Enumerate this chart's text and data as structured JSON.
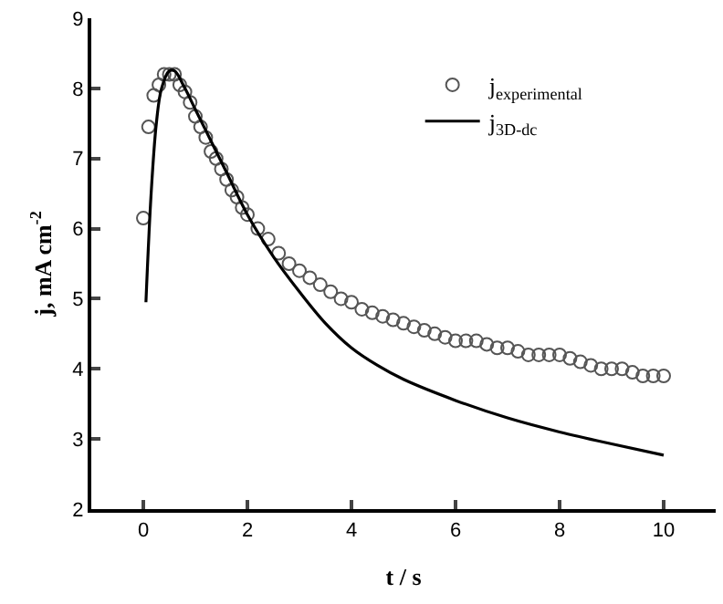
{
  "chart_data": {
    "type": "scatter",
    "xlabel": "t / s",
    "ylabel": "j, mA cm$^{-2}$",
    "xlim": [
      -1,
      11
    ],
    "ylim": [
      2,
      9
    ],
    "xticks": [
      0,
      2,
      4,
      6,
      8,
      10
    ],
    "yticks": [
      2,
      3,
      4,
      5,
      6,
      7,
      8,
      9
    ],
    "legend": "top right",
    "series": [
      {
        "name": "j$_{experimental}$",
        "marker": "circle",
        "color": "#555555",
        "x": [
          0,
          0.1,
          0.2,
          0.3,
          0.4,
          0.5,
          0.6,
          0.7,
          0.8,
          0.9,
          1.0,
          1.1,
          1.2,
          1.3,
          1.4,
          1.5,
          1.6,
          1.7,
          1.8,
          1.9,
          2.0,
          2.2,
          2.4,
          2.6,
          2.8,
          3.0,
          3.2,
          3.4,
          3.6,
          3.8,
          4.0,
          4.2,
          4.4,
          4.6,
          4.8,
          5.0,
          5.2,
          5.4,
          5.6,
          5.8,
          6.0,
          6.2,
          6.4,
          6.6,
          6.8,
          7.0,
          7.2,
          7.4,
          7.6,
          7.8,
          8.0,
          8.2,
          8.4,
          8.6,
          8.8,
          9.0,
          9.2,
          9.4,
          9.6,
          9.8,
          10.0
        ],
        "values": [
          6.15,
          7.45,
          7.9,
          8.05,
          8.2,
          8.2,
          8.2,
          8.05,
          7.95,
          7.8,
          7.6,
          7.45,
          7.3,
          7.1,
          7.0,
          6.85,
          6.7,
          6.55,
          6.45,
          6.3,
          6.2,
          6.0,
          5.85,
          5.65,
          5.5,
          5.4,
          5.3,
          5.2,
          5.1,
          5.0,
          4.95,
          4.85,
          4.8,
          4.75,
          4.7,
          4.65,
          4.6,
          4.55,
          4.5,
          4.45,
          4.4,
          4.4,
          4.4,
          4.35,
          4.3,
          4.3,
          4.25,
          4.2,
          4.2,
          4.2,
          4.2,
          4.15,
          4.1,
          4.05,
          4.0,
          4.0,
          4.0,
          3.95,
          3.9,
          3.9,
          3.9
        ]
      },
      {
        "name": "j$_{3D-dc}$",
        "type": "line",
        "line_style": "solid",
        "color": "#000000",
        "x": [
          0.05,
          0.15,
          0.25,
          0.35,
          0.5,
          0.6,
          0.8,
          1.0,
          1.3,
          1.6,
          2.0,
          2.5,
          3.0,
          3.5,
          4.0,
          4.5,
          5.0,
          6.0,
          7.0,
          8.0,
          9.0,
          10.0
        ],
        "values": [
          4.95,
          6.5,
          7.5,
          8.0,
          8.25,
          8.25,
          8.0,
          7.7,
          7.25,
          6.8,
          6.2,
          5.6,
          5.1,
          4.65,
          4.3,
          4.05,
          3.85,
          3.55,
          3.3,
          3.1,
          2.93,
          2.77
        ]
      }
    ]
  }
}
